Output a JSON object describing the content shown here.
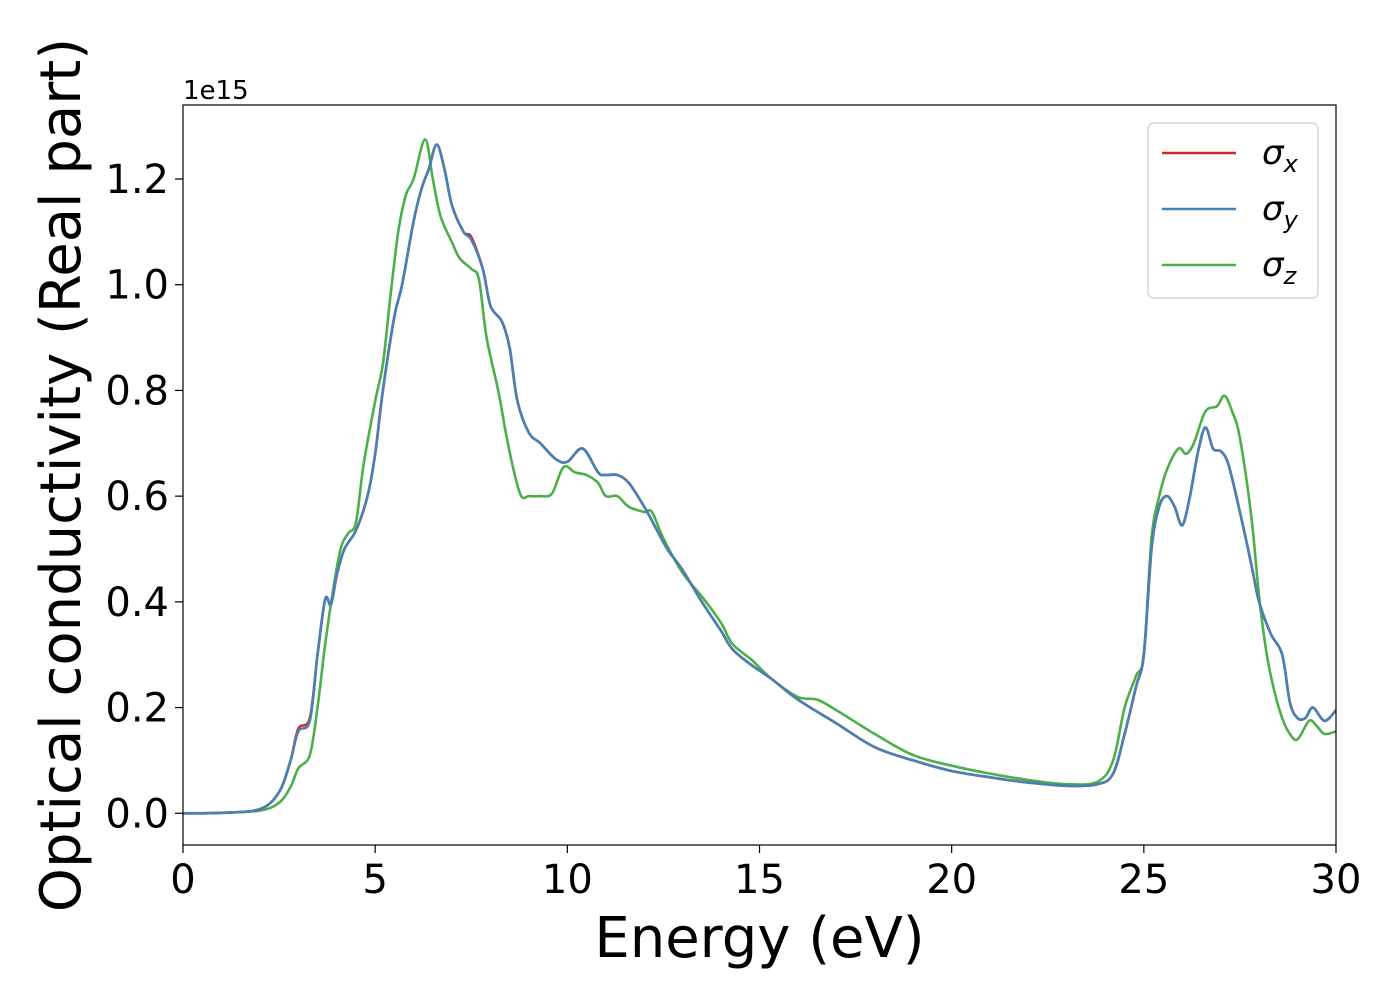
{
  "chart_data": {
    "type": "line",
    "xlabel": "Energy (eV)",
    "ylabel": "Optical conductivity (Real part)",
    "y_offset_label": "1e15",
    "xlim": [
      0,
      30
    ],
    "ylim": [
      -0.06,
      1.34
    ],
    "x_ticks": [
      0,
      5,
      10,
      15,
      20,
      25,
      30
    ],
    "y_ticks": [
      0.0,
      0.2,
      0.4,
      0.6,
      0.8,
      1.0,
      1.2
    ],
    "x_tick_labels": [
      "0",
      "5",
      "10",
      "15",
      "20",
      "25",
      "30"
    ],
    "y_tick_labels": [
      "0.0",
      "0.2",
      "0.4",
      "0.6",
      "0.8",
      "1.0",
      "1.2"
    ],
    "grid": false,
    "legend_position": "top-right",
    "series": [
      {
        "name": "σx",
        "symbol": "σ",
        "subscript": "x",
        "color": "#d62728",
        "points": [
          [
            0,
            0
          ],
          [
            1,
            0.001
          ],
          [
            2,
            0.008
          ],
          [
            2.5,
            0.04
          ],
          [
            2.8,
            0.1
          ],
          [
            3.0,
            0.16
          ],
          [
            3.3,
            0.18
          ],
          [
            3.5,
            0.3
          ],
          [
            3.7,
            0.405
          ],
          [
            3.85,
            0.395
          ],
          [
            4.0,
            0.45
          ],
          [
            4.2,
            0.5
          ],
          [
            4.5,
            0.535
          ],
          [
            4.8,
            0.6
          ],
          [
            5.0,
            0.68
          ],
          [
            5.2,
            0.8
          ],
          [
            5.5,
            0.94
          ],
          [
            5.7,
            1.0
          ],
          [
            6.0,
            1.12
          ],
          [
            6.2,
            1.18
          ],
          [
            6.4,
            1.22
          ],
          [
            6.6,
            1.265
          ],
          [
            6.8,
            1.22
          ],
          [
            7.0,
            1.15
          ],
          [
            7.3,
            1.1
          ],
          [
            7.5,
            1.09
          ],
          [
            7.8,
            1.03
          ],
          [
            8.0,
            0.96
          ],
          [
            8.3,
            0.93
          ],
          [
            8.5,
            0.88
          ],
          [
            8.7,
            0.78
          ],
          [
            9.0,
            0.72
          ],
          [
            9.3,
            0.7
          ],
          [
            9.7,
            0.67
          ],
          [
            10.0,
            0.665
          ],
          [
            10.4,
            0.69
          ],
          [
            10.8,
            0.645
          ],
          [
            11.0,
            0.64
          ],
          [
            11.3,
            0.64
          ],
          [
            11.6,
            0.625
          ],
          [
            12.0,
            0.58
          ],
          [
            12.3,
            0.54
          ],
          [
            12.6,
            0.5
          ],
          [
            13.0,
            0.46
          ],
          [
            13.5,
            0.4
          ],
          [
            14.0,
            0.345
          ],
          [
            14.3,
            0.31
          ],
          [
            14.8,
            0.28
          ],
          [
            15.3,
            0.255
          ],
          [
            16.0,
            0.215
          ],
          [
            17.0,
            0.17
          ],
          [
            18.0,
            0.125
          ],
          [
            19.0,
            0.1
          ],
          [
            20.0,
            0.08
          ],
          [
            21.0,
            0.068
          ],
          [
            22.0,
            0.058
          ],
          [
            23.0,
            0.052
          ],
          [
            23.8,
            0.055
          ],
          [
            24.2,
            0.075
          ],
          [
            24.5,
            0.15
          ],
          [
            24.8,
            0.24
          ],
          [
            25.0,
            0.3
          ],
          [
            25.2,
            0.5
          ],
          [
            25.4,
            0.58
          ],
          [
            25.6,
            0.6
          ],
          [
            25.8,
            0.58
          ],
          [
            26.0,
            0.545
          ],
          [
            26.2,
            0.6
          ],
          [
            26.4,
            0.68
          ],
          [
            26.6,
            0.73
          ],
          [
            26.8,
            0.69
          ],
          [
            27.0,
            0.685
          ],
          [
            27.2,
            0.66
          ],
          [
            27.5,
            0.57
          ],
          [
            27.8,
            0.47
          ],
          [
            28.0,
            0.4
          ],
          [
            28.3,
            0.34
          ],
          [
            28.6,
            0.3
          ],
          [
            28.8,
            0.21
          ],
          [
            29.0,
            0.18
          ],
          [
            29.2,
            0.18
          ],
          [
            29.4,
            0.2
          ],
          [
            29.7,
            0.175
          ],
          [
            30.0,
            0.195
          ]
        ]
      },
      {
        "name": "σy",
        "symbol": "σ",
        "subscript": "y",
        "color": "#4682b4",
        "points": [
          [
            0,
            0
          ],
          [
            1,
            0.001
          ],
          [
            2,
            0.008
          ],
          [
            2.5,
            0.04
          ],
          [
            2.8,
            0.1
          ],
          [
            3.0,
            0.155
          ],
          [
            3.3,
            0.175
          ],
          [
            3.5,
            0.3
          ],
          [
            3.7,
            0.405
          ],
          [
            3.85,
            0.395
          ],
          [
            4.0,
            0.45
          ],
          [
            4.2,
            0.5
          ],
          [
            4.5,
            0.535
          ],
          [
            4.8,
            0.6
          ],
          [
            5.0,
            0.68
          ],
          [
            5.2,
            0.8
          ],
          [
            5.5,
            0.94
          ],
          [
            5.7,
            1.0
          ],
          [
            6.0,
            1.12
          ],
          [
            6.2,
            1.18
          ],
          [
            6.4,
            1.22
          ],
          [
            6.6,
            1.265
          ],
          [
            6.8,
            1.22
          ],
          [
            7.0,
            1.15
          ],
          [
            7.3,
            1.1
          ],
          [
            7.5,
            1.085
          ],
          [
            7.8,
            1.03
          ],
          [
            8.0,
            0.96
          ],
          [
            8.3,
            0.93
          ],
          [
            8.5,
            0.88
          ],
          [
            8.7,
            0.78
          ],
          [
            9.0,
            0.72
          ],
          [
            9.3,
            0.7
          ],
          [
            9.7,
            0.67
          ],
          [
            10.0,
            0.665
          ],
          [
            10.4,
            0.69
          ],
          [
            10.8,
            0.645
          ],
          [
            11.0,
            0.64
          ],
          [
            11.3,
            0.64
          ],
          [
            11.6,
            0.625
          ],
          [
            12.0,
            0.58
          ],
          [
            12.3,
            0.54
          ],
          [
            12.6,
            0.5
          ],
          [
            13.0,
            0.46
          ],
          [
            13.5,
            0.4
          ],
          [
            14.0,
            0.345
          ],
          [
            14.3,
            0.31
          ],
          [
            14.8,
            0.28
          ],
          [
            15.3,
            0.255
          ],
          [
            16.0,
            0.215
          ],
          [
            17.0,
            0.17
          ],
          [
            18.0,
            0.125
          ],
          [
            19.0,
            0.1
          ],
          [
            20.0,
            0.08
          ],
          [
            21.0,
            0.068
          ],
          [
            22.0,
            0.058
          ],
          [
            23.0,
            0.052
          ],
          [
            23.8,
            0.055
          ],
          [
            24.2,
            0.075
          ],
          [
            24.5,
            0.15
          ],
          [
            24.8,
            0.24
          ],
          [
            25.0,
            0.3
          ],
          [
            25.2,
            0.5
          ],
          [
            25.4,
            0.58
          ],
          [
            25.6,
            0.6
          ],
          [
            25.8,
            0.58
          ],
          [
            26.0,
            0.545
          ],
          [
            26.2,
            0.6
          ],
          [
            26.4,
            0.68
          ],
          [
            26.6,
            0.73
          ],
          [
            26.8,
            0.69
          ],
          [
            27.0,
            0.685
          ],
          [
            27.2,
            0.66
          ],
          [
            27.5,
            0.57
          ],
          [
            27.8,
            0.47
          ],
          [
            28.0,
            0.4
          ],
          [
            28.3,
            0.34
          ],
          [
            28.6,
            0.3
          ],
          [
            28.8,
            0.21
          ],
          [
            29.0,
            0.18
          ],
          [
            29.2,
            0.18
          ],
          [
            29.4,
            0.2
          ],
          [
            29.7,
            0.175
          ],
          [
            30.0,
            0.195
          ]
        ]
      },
      {
        "name": "σz",
        "symbol": "σ",
        "subscript": "z",
        "color": "#4daf4a",
        "points": [
          [
            0,
            0
          ],
          [
            1,
            0.001
          ],
          [
            2,
            0.005
          ],
          [
            2.5,
            0.02
          ],
          [
            2.8,
            0.05
          ],
          [
            3.0,
            0.085
          ],
          [
            3.3,
            0.11
          ],
          [
            3.5,
            0.2
          ],
          [
            3.7,
            0.32
          ],
          [
            3.9,
            0.42
          ],
          [
            4.1,
            0.5
          ],
          [
            4.3,
            0.53
          ],
          [
            4.5,
            0.55
          ],
          [
            4.7,
            0.66
          ],
          [
            5.0,
            0.78
          ],
          [
            5.2,
            0.85
          ],
          [
            5.4,
            0.98
          ],
          [
            5.6,
            1.1
          ],
          [
            5.8,
            1.17
          ],
          [
            6.0,
            1.2
          ],
          [
            6.3,
            1.275
          ],
          [
            6.5,
            1.2
          ],
          [
            6.7,
            1.13
          ],
          [
            7.0,
            1.08
          ],
          [
            7.2,
            1.05
          ],
          [
            7.5,
            1.03
          ],
          [
            7.7,
            1.01
          ],
          [
            7.9,
            0.9
          ],
          [
            8.2,
            0.8
          ],
          [
            8.4,
            0.72
          ],
          [
            8.6,
            0.65
          ],
          [
            8.8,
            0.6
          ],
          [
            9.0,
            0.6
          ],
          [
            9.3,
            0.6
          ],
          [
            9.6,
            0.605
          ],
          [
            9.9,
            0.655
          ],
          [
            10.2,
            0.645
          ],
          [
            10.5,
            0.64
          ],
          [
            10.8,
            0.625
          ],
          [
            11.0,
            0.6
          ],
          [
            11.3,
            0.6
          ],
          [
            11.6,
            0.58
          ],
          [
            12.0,
            0.57
          ],
          [
            12.2,
            0.57
          ],
          [
            12.5,
            0.52
          ],
          [
            13.0,
            0.455
          ],
          [
            13.5,
            0.41
          ],
          [
            14.0,
            0.36
          ],
          [
            14.3,
            0.32
          ],
          [
            14.8,
            0.29
          ],
          [
            15.3,
            0.255
          ],
          [
            16.0,
            0.22
          ],
          [
            16.5,
            0.215
          ],
          [
            17.0,
            0.195
          ],
          [
            18.0,
            0.15
          ],
          [
            19.0,
            0.11
          ],
          [
            20.0,
            0.09
          ],
          [
            21.0,
            0.075
          ],
          [
            22.0,
            0.063
          ],
          [
            23.0,
            0.055
          ],
          [
            23.8,
            0.06
          ],
          [
            24.2,
            0.1
          ],
          [
            24.5,
            0.2
          ],
          [
            24.8,
            0.26
          ],
          [
            25.0,
            0.3
          ],
          [
            25.2,
            0.52
          ],
          [
            25.4,
            0.6
          ],
          [
            25.6,
            0.65
          ],
          [
            25.9,
            0.69
          ],
          [
            26.1,
            0.68
          ],
          [
            26.3,
            0.7
          ],
          [
            26.6,
            0.76
          ],
          [
            26.9,
            0.77
          ],
          [
            27.1,
            0.79
          ],
          [
            27.3,
            0.76
          ],
          [
            27.5,
            0.71
          ],
          [
            27.8,
            0.56
          ],
          [
            28.0,
            0.41
          ],
          [
            28.2,
            0.3
          ],
          [
            28.4,
            0.23
          ],
          [
            28.6,
            0.18
          ],
          [
            28.8,
            0.15
          ],
          [
            29.0,
            0.14
          ],
          [
            29.3,
            0.175
          ],
          [
            29.5,
            0.165
          ],
          [
            29.7,
            0.15
          ],
          [
            30.0,
            0.155
          ]
        ]
      }
    ]
  }
}
